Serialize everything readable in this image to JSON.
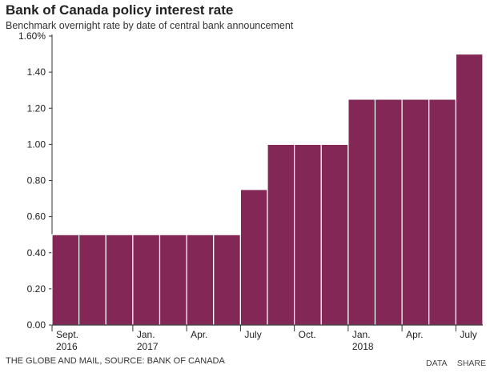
{
  "header": {
    "title": "Bank of Canada policy interest rate",
    "subtitle": "Benchmark overnight rate by date of central bank announcement"
  },
  "footer": {
    "source": "THE GLOBE AND MAIL, SOURCE: BANK OF CANADA",
    "data_link": "DATA",
    "share_link": "SHARE"
  },
  "colors": {
    "bar": "#832756",
    "axis": "#333333",
    "grid": "#d9d9d9"
  },
  "chart_data": {
    "type": "bar",
    "title": "Bank of Canada policy interest rate",
    "subtitle": "Benchmark overnight rate by date of central bank announcement",
    "xlabel": "",
    "ylabel": "",
    "ylim": [
      0,
      1.6
    ],
    "yticks": [
      "0.00",
      "0.20",
      "0.40",
      "0.60",
      "0.80",
      "1.00",
      "1.20",
      "1.40",
      "1.60%"
    ],
    "grid": false,
    "values": [
      0.5,
      0.5,
      0.5,
      0.5,
      0.5,
      0.5,
      0.5,
      0.75,
      1.0,
      1.0,
      1.0,
      1.25,
      1.25,
      1.25,
      1.25,
      1.5
    ],
    "x_tick_labels": [
      {
        "bar": 0,
        "line1": "Sept.",
        "line2": "2016"
      },
      {
        "bar": 3,
        "line1": "Jan.",
        "line2": "2017"
      },
      {
        "bar": 5,
        "line1": "Apr.",
        "line2": ""
      },
      {
        "bar": 7,
        "line1": "July",
        "line2": ""
      },
      {
        "bar": 9,
        "line1": "Oct.",
        "line2": ""
      },
      {
        "bar": 11,
        "line1": "Jan.",
        "line2": "2018"
      },
      {
        "bar": 13,
        "line1": "Apr.",
        "line2": ""
      },
      {
        "bar": 15,
        "line1": "July",
        "line2": ""
      }
    ]
  }
}
